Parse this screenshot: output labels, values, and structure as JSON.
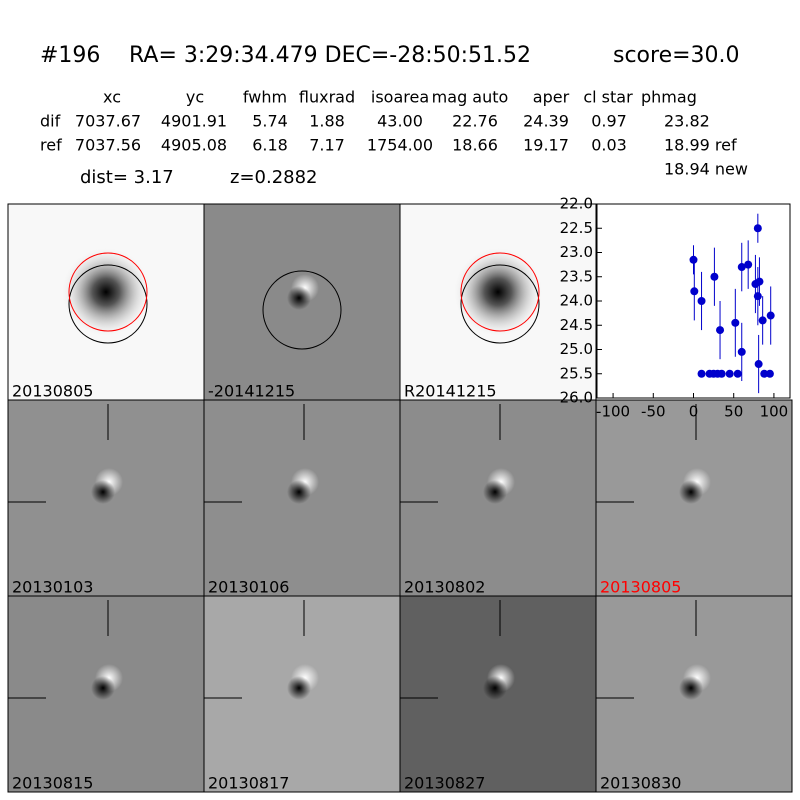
{
  "header": {
    "id": "#196",
    "coords": "RA= 3:29:34.479 DEC=-28:50:51.52",
    "score": "score=30.0"
  },
  "table": {
    "columns": [
      "xc",
      "yc",
      "fwhm",
      "fluxrad",
      "isoarea",
      "mag auto",
      "aper",
      "cl star",
      "phmag"
    ],
    "rows": [
      [
        "dif",
        "7037.67",
        "4901.91",
        "5.74",
        "1.88",
        "43.00",
        "22.76",
        "24.39",
        "0.97",
        "23.82"
      ],
      [
        "ref",
        "7037.56",
        "4905.08",
        "6.18",
        "7.17",
        "1754.00",
        "18.66",
        "19.17",
        "0.03",
        "18.99 ref"
      ]
    ],
    "extra": "18.94 new"
  },
  "dist": "dist=  3.17",
  "z": "z=0.2882",
  "panels": [
    {
      "label": "20130805"
    },
    {
      "label": "-20141215"
    },
    {
      "label": "R20141215"
    },
    {
      "label": "20130103"
    },
    {
      "label": "20130106"
    },
    {
      "label": "20130802"
    },
    {
      "label": "20130805",
      "label_color": "red"
    },
    {
      "label": "20130815"
    },
    {
      "label": "20130817"
    },
    {
      "label": "20130827"
    },
    {
      "label": "20130830"
    }
  ],
  "chart_data": {
    "type": "scatter",
    "color": "#0000cc",
    "x": [
      0,
      1,
      10,
      10,
      20,
      25,
      26,
      30,
      33,
      35,
      45,
      52,
      55,
      60,
      60,
      68,
      77,
      80,
      80,
      81,
      82,
      86,
      88,
      95,
      96
    ],
    "values": [
      23.15,
      23.8,
      24.0,
      25.5,
      25.5,
      25.5,
      23.5,
      25.5,
      24.6,
      25.5,
      25.5,
      24.45,
      25.5,
      25.05,
      23.3,
      23.25,
      23.65,
      22.5,
      23.9,
      25.3,
      23.6,
      24.4,
      25.5,
      25.5,
      24.3
    ],
    "errors": [
      0.3,
      0.6,
      0.6,
      null,
      null,
      null,
      0.6,
      null,
      0.6,
      null,
      null,
      0.7,
      null,
      0.6,
      0.5,
      0.5,
      0.6,
      0.3,
      0.6,
      0.6,
      0.5,
      0.5,
      null,
      null,
      0.6
    ],
    "xlim": [
      -120,
      120
    ],
    "ylim": [
      26,
      22
    ],
    "xticks": [
      -100,
      -50,
      0,
      50,
      100
    ],
    "yticks": [
      {
        "value": 22,
        "label": "22.0"
      },
      22.5,
      {
        "value": 23,
        "label": "23.0"
      },
      23.5,
      {
        "value": 24,
        "label": "24.0"
      },
      24.5,
      {
        "value": 25,
        "label": "25.0"
      },
      25.5,
      {
        "value": 26,
        "label": "26.0"
      }
    ]
  }
}
